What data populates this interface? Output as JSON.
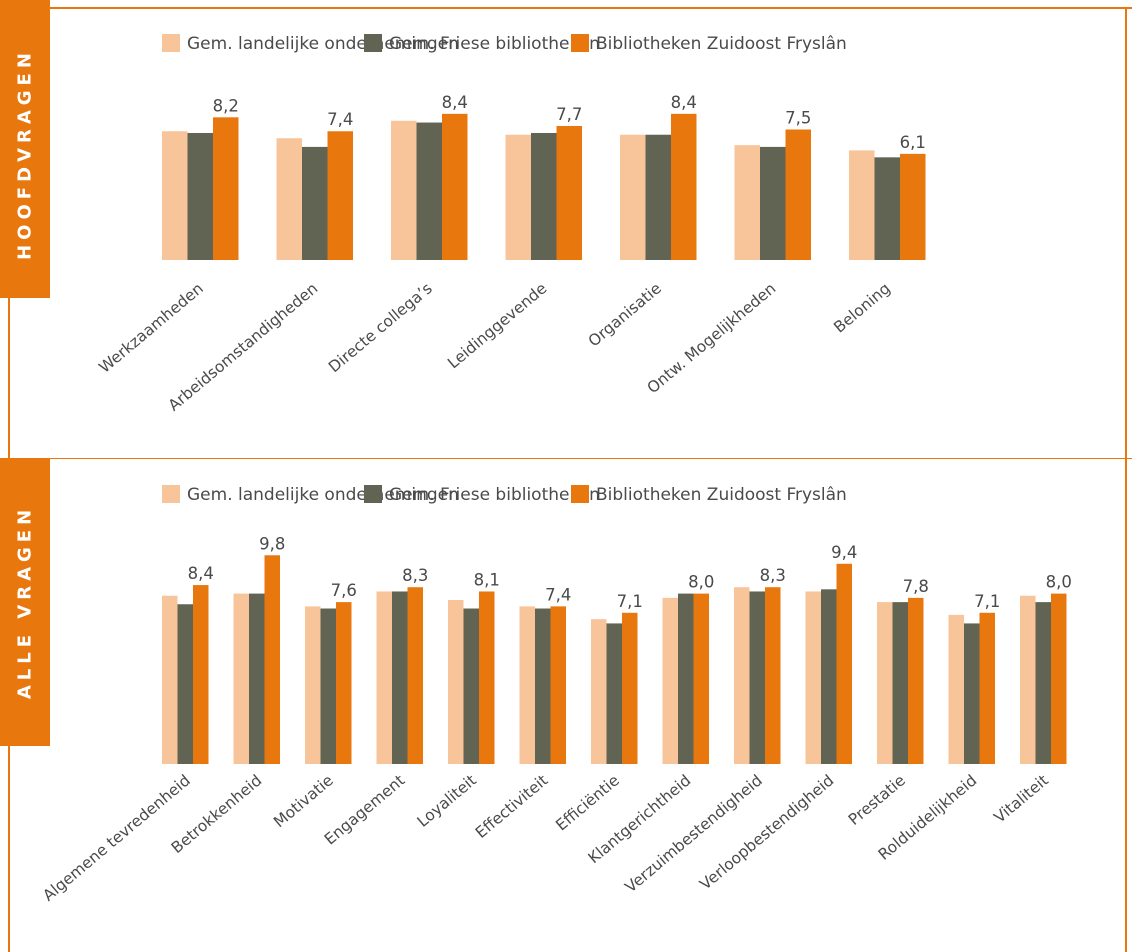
{
  "colors": {
    "accent": "#e8770e",
    "series": [
      "#f8c49a",
      "#626453",
      "#e8770e"
    ],
    "frame": "#e8770e"
  },
  "panels": {
    "top": {
      "tab_label": "HOOFDVRAGEN"
    },
    "bottom": {
      "tab_label": "ALLE VRAGEN"
    }
  },
  "chart_data": [
    {
      "type": "bar",
      "title": "",
      "legend_position": "top",
      "categories": [
        "Werkzaamheden",
        "Arbeidsomstandigheden",
        "Directe collega’s",
        "Leidinggevende",
        "Organisatie",
        "Ontw. Mogelijkheden",
        "Beloning"
      ],
      "series": [
        {
          "name": "Gem. landelijke ondernemingen",
          "values": [
            7.4,
            7.0,
            8.0,
            7.2,
            7.2,
            6.6,
            6.3
          ]
        },
        {
          "name": "Gem. Friese bibliotheken",
          "values": [
            7.3,
            6.5,
            7.9,
            7.3,
            7.2,
            6.5,
            5.9
          ]
        },
        {
          "name": "Bibliotheken Zuidoost Fryslân",
          "values": [
            8.2,
            7.4,
            8.4,
            7.7,
            8.4,
            7.5,
            6.1
          ]
        }
      ],
      "value_labels": [
        "8,2",
        "7,4",
        "8,4",
        "7,7",
        "8,4",
        "7,5",
        "6,1"
      ],
      "ylim": [
        0,
        10
      ]
    },
    {
      "type": "bar",
      "title": "",
      "legend_position": "top",
      "categories": [
        "Algemene tevredenheid",
        "Betrokkenheid",
        "Motivatie",
        "Engagement",
        "Loyaliteit",
        "Effectiviteit",
        "Efficiëntie",
        "Klantgerichtheid",
        "Verzuimbestendigheid",
        "Verloopbestendigheid",
        "Prestatie",
        "Rolduidelijkheid",
        "Vitaliteit"
      ],
      "series": [
        {
          "name": "Gem. landelijke ondernemingen",
          "values": [
            7.9,
            8.0,
            7.4,
            8.1,
            7.7,
            7.4,
            6.8,
            7.8,
            8.3,
            8.1,
            7.6,
            7.0,
            7.9
          ]
        },
        {
          "name": "Gem. Friese bibliotheken",
          "values": [
            7.5,
            8.0,
            7.3,
            8.1,
            7.3,
            7.3,
            6.6,
            8.0,
            8.1,
            8.2,
            7.6,
            6.6,
            7.6
          ]
        },
        {
          "name": "Bibliotheken Zuidoost Fryslân",
          "values": [
            8.4,
            9.8,
            7.6,
            8.3,
            8.1,
            7.4,
            7.1,
            8.0,
            8.3,
            9.4,
            7.8,
            7.1,
            8.0
          ]
        }
      ],
      "value_labels": [
        "8,4",
        "9,8",
        "7,6",
        "8,3",
        "8,1",
        "7,4",
        "7,1",
        "8,0",
        "8,3",
        "9,4",
        "7,8",
        "7,1",
        "8,0"
      ],
      "ylim": [
        0,
        10
      ]
    }
  ]
}
